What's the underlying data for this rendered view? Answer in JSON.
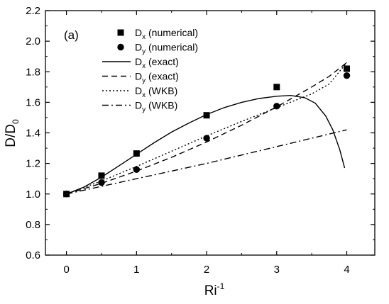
{
  "chart_data": {
    "type": "line",
    "panel_label": "(a)",
    "xlabel": "Ri",
    "xlabel_sup": "-1",
    "ylabel": "D/D",
    "ylabel_sub": "0",
    "xlim": [
      -0.3,
      4.4
    ],
    "ylim": [
      0.6,
      2.2
    ],
    "xticks": [
      0,
      1,
      2,
      3,
      4
    ],
    "yticks": [
      0.6,
      0.8,
      1.0,
      1.2,
      1.4,
      1.6,
      1.8,
      2.0,
      2.2
    ],
    "ytick_labels": [
      "0.6",
      "0.8",
      "1.0",
      "1.2",
      "1.4",
      "1.6",
      "1.8",
      "2.0",
      "2.2"
    ],
    "xtick_labels": [
      "0",
      "1",
      "2",
      "3",
      "4"
    ],
    "legend_placement": "top-left",
    "series": [
      {
        "name": "D",
        "name_sub": "x",
        "name_suffix": " (numerical)",
        "kind": "scatter",
        "marker": "square",
        "x": [
          0,
          0.5,
          1,
          2,
          3,
          4
        ],
        "y": [
          1.0,
          1.12,
          1.265,
          1.515,
          1.7,
          1.82
        ]
      },
      {
        "name": "D",
        "name_sub": "y",
        "name_suffix": " (numerical)",
        "kind": "scatter",
        "marker": "circle",
        "x": [
          0,
          0.5,
          1,
          2,
          3,
          4
        ],
        "y": [
          1.0,
          1.075,
          1.16,
          1.365,
          1.575,
          1.775
        ]
      },
      {
        "name": "D",
        "name_sub": "x",
        "name_suffix": " (exact)",
        "kind": "line",
        "dash": "solid",
        "x": [
          0,
          0.25,
          0.5,
          0.75,
          1,
          1.25,
          1.5,
          1.75,
          2,
          2.25,
          2.5,
          2.75,
          3,
          3.2,
          3.4,
          3.55,
          3.7,
          3.8,
          3.9,
          3.97
        ],
        "y": [
          1.0,
          1.045,
          1.11,
          1.185,
          1.26,
          1.335,
          1.405,
          1.465,
          1.52,
          1.565,
          1.6,
          1.625,
          1.64,
          1.645,
          1.63,
          1.595,
          1.51,
          1.42,
          1.29,
          1.17
        ]
      },
      {
        "name": "D",
        "name_sub": "y",
        "name_suffix": " (exact)",
        "kind": "line",
        "dash": "dash",
        "x": [
          0,
          0.5,
          1,
          1.5,
          2,
          2.5,
          3,
          3.5,
          3.75,
          4
        ],
        "y": [
          1.0,
          1.07,
          1.15,
          1.24,
          1.34,
          1.45,
          1.57,
          1.7,
          1.77,
          1.86
        ]
      },
      {
        "name": "D",
        "name_sub": "x",
        "name_suffix": " (WKB)",
        "kind": "line",
        "dash": "dot",
        "x": [
          0,
          0.5,
          1,
          1.5,
          2,
          2.5,
          3,
          3.5,
          3.75,
          4
        ],
        "y": [
          1.0,
          1.085,
          1.18,
          1.28,
          1.38,
          1.475,
          1.565,
          1.655,
          1.72,
          1.86
        ]
      },
      {
        "name": "D",
        "name_sub": "y",
        "name_suffix": " (WKB)",
        "kind": "line",
        "dash": "dashdot",
        "x": [
          0,
          1,
          2,
          3,
          4
        ],
        "y": [
          1.0,
          1.1,
          1.2,
          1.31,
          1.42
        ]
      }
    ]
  }
}
